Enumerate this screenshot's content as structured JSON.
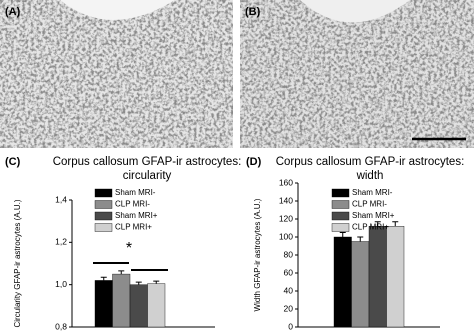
{
  "images": [
    {
      "label": "(A)"
    },
    {
      "label": "(B)"
    }
  ],
  "chart_data": [
    {
      "type": "bar",
      "panel_label": "(C)",
      "title": [
        "Corpus callosum GFAP-ir astrocytes:",
        "circularity"
      ],
      "ylabel": "Circularity GFAP-ir astrocytes (A.U.)",
      "ylim": [
        0.8,
        1.4
      ],
      "yticks": [
        {
          "value": 0.8,
          "label": "0,8"
        },
        {
          "value": 1.0,
          "label": "1,0"
        },
        {
          "value": 1.2,
          "label": "1,2"
        },
        {
          "value": 1.4,
          "label": "1,4"
        }
      ],
      "annotation": "*",
      "series": [
        {
          "name": "Sham MRI-",
          "color": "#000000",
          "values": [
            1.02
          ],
          "errors": [
            0.015
          ]
        },
        {
          "name": "CLP MRI-",
          "color": "#8c8c8c",
          "values": [
            1.05
          ],
          "errors": [
            0.015
          ]
        },
        {
          "name": "Sham MRI+",
          "color": "#4a4a4a",
          "values": [
            1.0
          ],
          "errors": [
            0.012
          ]
        },
        {
          "name": "CLP MRI+",
          "color": "#d0d0d0",
          "values": [
            1.005
          ],
          "errors": [
            0.012
          ]
        }
      ]
    },
    {
      "type": "bar",
      "panel_label": "(D)",
      "title": [
        "Corpus callosum GFAP-ir astrocytes:",
        "width"
      ],
      "ylabel": "Width GFAP-ir astrocytes (A.U.)",
      "ylim": [
        0,
        160
      ],
      "yticks": [
        0,
        20,
        40,
        60,
        80,
        100,
        120,
        140,
        160
      ],
      "series": [
        {
          "name": "Sham MRI-",
          "color": "#000000",
          "values": [
            100
          ],
          "errors": [
            5
          ]
        },
        {
          "name": "CLP MRI-",
          "color": "#8c8c8c",
          "values": [
            95
          ],
          "errors": [
            5
          ]
        },
        {
          "name": "Sham MRI+",
          "color": "#4a4a4a",
          "values": [
            112
          ],
          "errors": [
            5
          ]
        },
        {
          "name": "CLP MRI+",
          "color": "#d0d0d0",
          "values": [
            112
          ],
          "errors": [
            5
          ]
        }
      ]
    }
  ]
}
